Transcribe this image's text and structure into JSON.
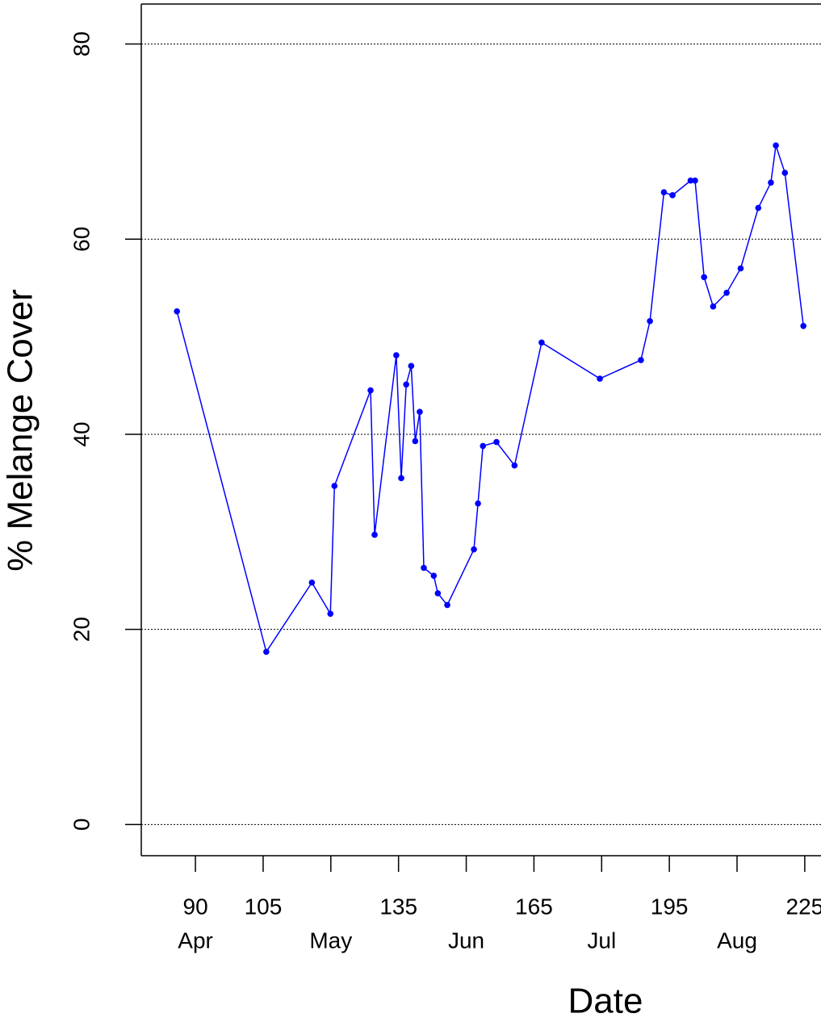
{
  "chart_data": {
    "type": "line",
    "xlabel": "Date",
    "ylabel": "% Melange Cover",
    "xlim": [
      78,
      228.6
    ],
    "ylim": [
      -3.2,
      84.1
    ],
    "xticks": [
      {
        "value": 90,
        "label": "90",
        "month": "Apr"
      },
      {
        "value": 105,
        "label": "105"
      },
      {
        "value": 120,
        "label": "",
        "month": "May"
      },
      {
        "value": 135,
        "label": "135"
      },
      {
        "value": 150,
        "label": "",
        "month": "Jun"
      },
      {
        "value": 165,
        "label": "165"
      },
      {
        "value": 180,
        "label": "",
        "month": "Jul"
      },
      {
        "value": 195,
        "label": "195"
      },
      {
        "value": 210,
        "label": "",
        "month": "Aug"
      },
      {
        "value": 225,
        "label": "225"
      }
    ],
    "yticks": [
      0,
      20,
      40,
      60,
      80
    ],
    "grid": true,
    "series": [
      {
        "color": "#0000ff",
        "x": [
          85.9,
          105.7,
          115.8,
          119.9,
          120.8,
          128.8,
          129.7,
          134.5,
          135.6,
          136.7,
          137.8,
          138.7,
          139.7,
          140.6,
          142.8,
          143.7,
          145.8,
          151.7,
          152.6,
          153.7,
          156.7,
          160.7,
          166.7,
          179.6,
          188.7,
          190.7,
          193.8,
          195.7,
          199.7,
          200.7,
          202.7,
          204.7,
          207.7,
          210.8,
          214.7,
          217.5,
          218.6,
          220.6,
          224.7
        ],
        "values": [
          52.6,
          17.7,
          24.8,
          21.6,
          34.7,
          44.5,
          29.7,
          48.1,
          35.5,
          45.1,
          47.0,
          39.3,
          42.3,
          26.3,
          25.5,
          23.7,
          22.5,
          28.2,
          32.9,
          38.8,
          39.2,
          36.8,
          49.4,
          45.7,
          47.6,
          51.6,
          64.8,
          64.5,
          66.0,
          66.0,
          56.1,
          53.1,
          54.5,
          57.0,
          63.2,
          65.8,
          69.6,
          66.8,
          51.1
        ]
      }
    ]
  }
}
